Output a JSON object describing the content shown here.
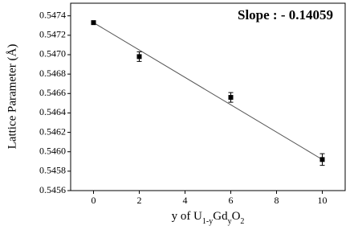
{
  "chart_data": {
    "type": "scatter",
    "annotation": "Slope : - 0.14059",
    "ylabel": "Lattice Parameter (Å)",
    "xlabel_parts": [
      "y of U",
      "1-y",
      "Gd",
      "y",
      "O",
      "2"
    ],
    "xlim": [
      -1,
      11
    ],
    "xticks": [
      0,
      2,
      4,
      6,
      8,
      10
    ],
    "ylim": [
      0.5456,
      0.54753
    ],
    "yticks": [
      0.5456,
      0.5458,
      {
        "value": 0.546,
        "label": "0.5460"
      },
      0.5462,
      0.5464,
      0.5466,
      0.5468,
      {
        "value": 0.547,
        "label": "0.5470"
      },
      0.5472,
      0.5474
    ],
    "series": [
      {
        "color": "#000000",
        "x": [
          0,
          2,
          6,
          10
        ],
        "values": [
          0.54733,
          0.54698,
          0.54656,
          0.54592
        ],
        "errors": [
          1e-05,
          5e-05,
          5e-05,
          6e-05
        ]
      }
    ],
    "fit": {
      "color": "#555555",
      "x": [
        0,
        10
      ],
      "values": [
        0.54733,
        0.54592
      ]
    }
  }
}
